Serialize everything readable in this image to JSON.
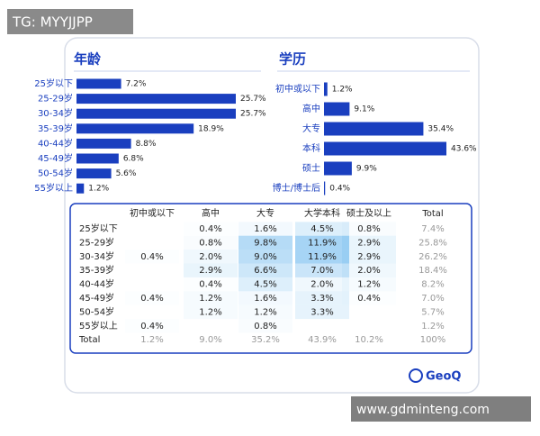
{
  "watermark": "TG: MYYJJPP",
  "chart_data": [
    {
      "type": "bar",
      "title": "年龄",
      "categories": [
        "25岁以下",
        "25-29岁",
        "30-34岁",
        "35-39岁",
        "40-44岁",
        "45-49岁",
        "50-54岁",
        "55岁以上"
      ],
      "values": [
        7.2,
        25.7,
        25.7,
        18.9,
        8.8,
        6.8,
        5.6,
        1.2
      ],
      "value_labels": [
        "7.2%",
        "25.7%",
        "25.7%",
        "18.9%",
        "8.8%",
        "6.8%",
        "5.6%",
        "1.2%"
      ],
      "color": "#1a3fbf"
    },
    {
      "type": "bar",
      "title": "学历",
      "categories": [
        "初中或以下",
        "高中",
        "大专",
        "本科",
        "硕士",
        "博士/博士后"
      ],
      "values": [
        1.2,
        9.1,
        35.4,
        43.6,
        9.9,
        0.4
      ],
      "value_labels": [
        "1.2%",
        "9.1%",
        "35.4%",
        "43.6%",
        "9.9%",
        "0.4%"
      ],
      "color": "#1a3fbf"
    }
  ],
  "table": {
    "header": [
      "初中或以下",
      "高中",
      "大专",
      "大学本科",
      "硕士及以上",
      "Total"
    ],
    "rows": [
      {
        "label": "25岁以下",
        "cells": [
          null,
          "0.4%",
          "1.6%",
          "4.5%",
          "0.8%",
          "7.4%"
        ]
      },
      {
        "label": "25-29岁",
        "cells": [
          null,
          "0.8%",
          "9.8%",
          "11.9%",
          "2.9%",
          "25.8%"
        ]
      },
      {
        "label": "30-34岁",
        "cells": [
          "0.4%",
          "2.0%",
          "9.0%",
          "11.9%",
          "2.9%",
          "26.2%"
        ]
      },
      {
        "label": "35-39岁",
        "cells": [
          null,
          "2.9%",
          "6.6%",
          "7.0%",
          "2.0%",
          "18.4%"
        ]
      },
      {
        "label": "40-44岁",
        "cells": [
          null,
          "0.4%",
          "4.5%",
          "2.0%",
          "1.2%",
          "8.2%"
        ]
      },
      {
        "label": "45-49岁",
        "cells": [
          "0.4%",
          "1.2%",
          "1.6%",
          "3.3%",
          "0.4%",
          "7.0%"
        ]
      },
      {
        "label": "50-54岁",
        "cells": [
          null,
          "1.2%",
          "1.2%",
          "3.3%",
          null,
          "5.7%"
        ]
      },
      {
        "label": "55岁以上",
        "cells": [
          "0.4%",
          null,
          "0.8%",
          null,
          null,
          "1.2%"
        ]
      },
      {
        "label": "Total",
        "cells": [
          "1.2%",
          "9.0%",
          "35.2%",
          "43.9%",
          "10.2%",
          "100%"
        ]
      }
    ]
  },
  "logo": "GeoQ",
  "footer": "www.gdminteng.com"
}
